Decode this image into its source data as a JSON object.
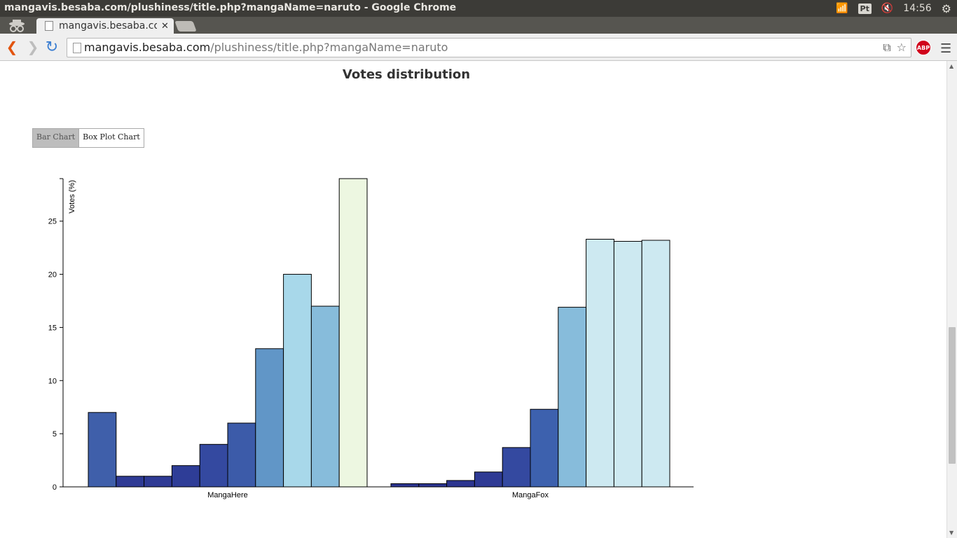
{
  "os": {
    "window_title": "mangavis.besaba.com/plushiness/title.php?mangaName=naruto - Google Chrome",
    "keyboard_layout": "Pt",
    "clock": "14:56"
  },
  "browser": {
    "tab_title": "mangavis.besaba.com/plushiness/title.php?mangaName=naruto",
    "url_host": "mangavis.besaba.com",
    "url_path": "/plushiness/title.php?mangaName=naruto",
    "adblock_label": "ABP"
  },
  "page": {
    "heading": "Votes distribution",
    "tabs": [
      {
        "label": "Bar Chart",
        "active": true
      },
      {
        "label": "Box Plot Chart",
        "active": false
      }
    ]
  },
  "chart_data": {
    "type": "bar",
    "ylabel": "Votes (%)",
    "ylim": [
      0,
      29
    ],
    "yticks": [
      0,
      5,
      10,
      15,
      20,
      25
    ],
    "groups": [
      {
        "name": "MangaHere",
        "values": [
          7,
          1,
          1,
          2,
          4,
          6,
          13,
          20,
          17,
          29
        ],
        "colors": [
          "#3f5faa",
          "#2e3a94",
          "#2e3a94",
          "#2e3d97",
          "#3449a0",
          "#3c5ba9",
          "#6196c7",
          "#a8d8ea",
          "#87bcdb",
          "#edf7e1"
        ]
      },
      {
        "name": "MangaFox",
        "values": [
          0.3,
          0.3,
          0.6,
          1.4,
          3.7,
          7.3,
          16.9,
          23.3,
          23.1,
          23.2
        ],
        "colors": [
          "#2c3590",
          "#2c3590",
          "#2c3590",
          "#2e3a94",
          "#3449a0",
          "#3d61ae",
          "#87bcdb",
          "#cde9f1",
          "#cde9f1",
          "#cde9f1"
        ]
      }
    ]
  }
}
